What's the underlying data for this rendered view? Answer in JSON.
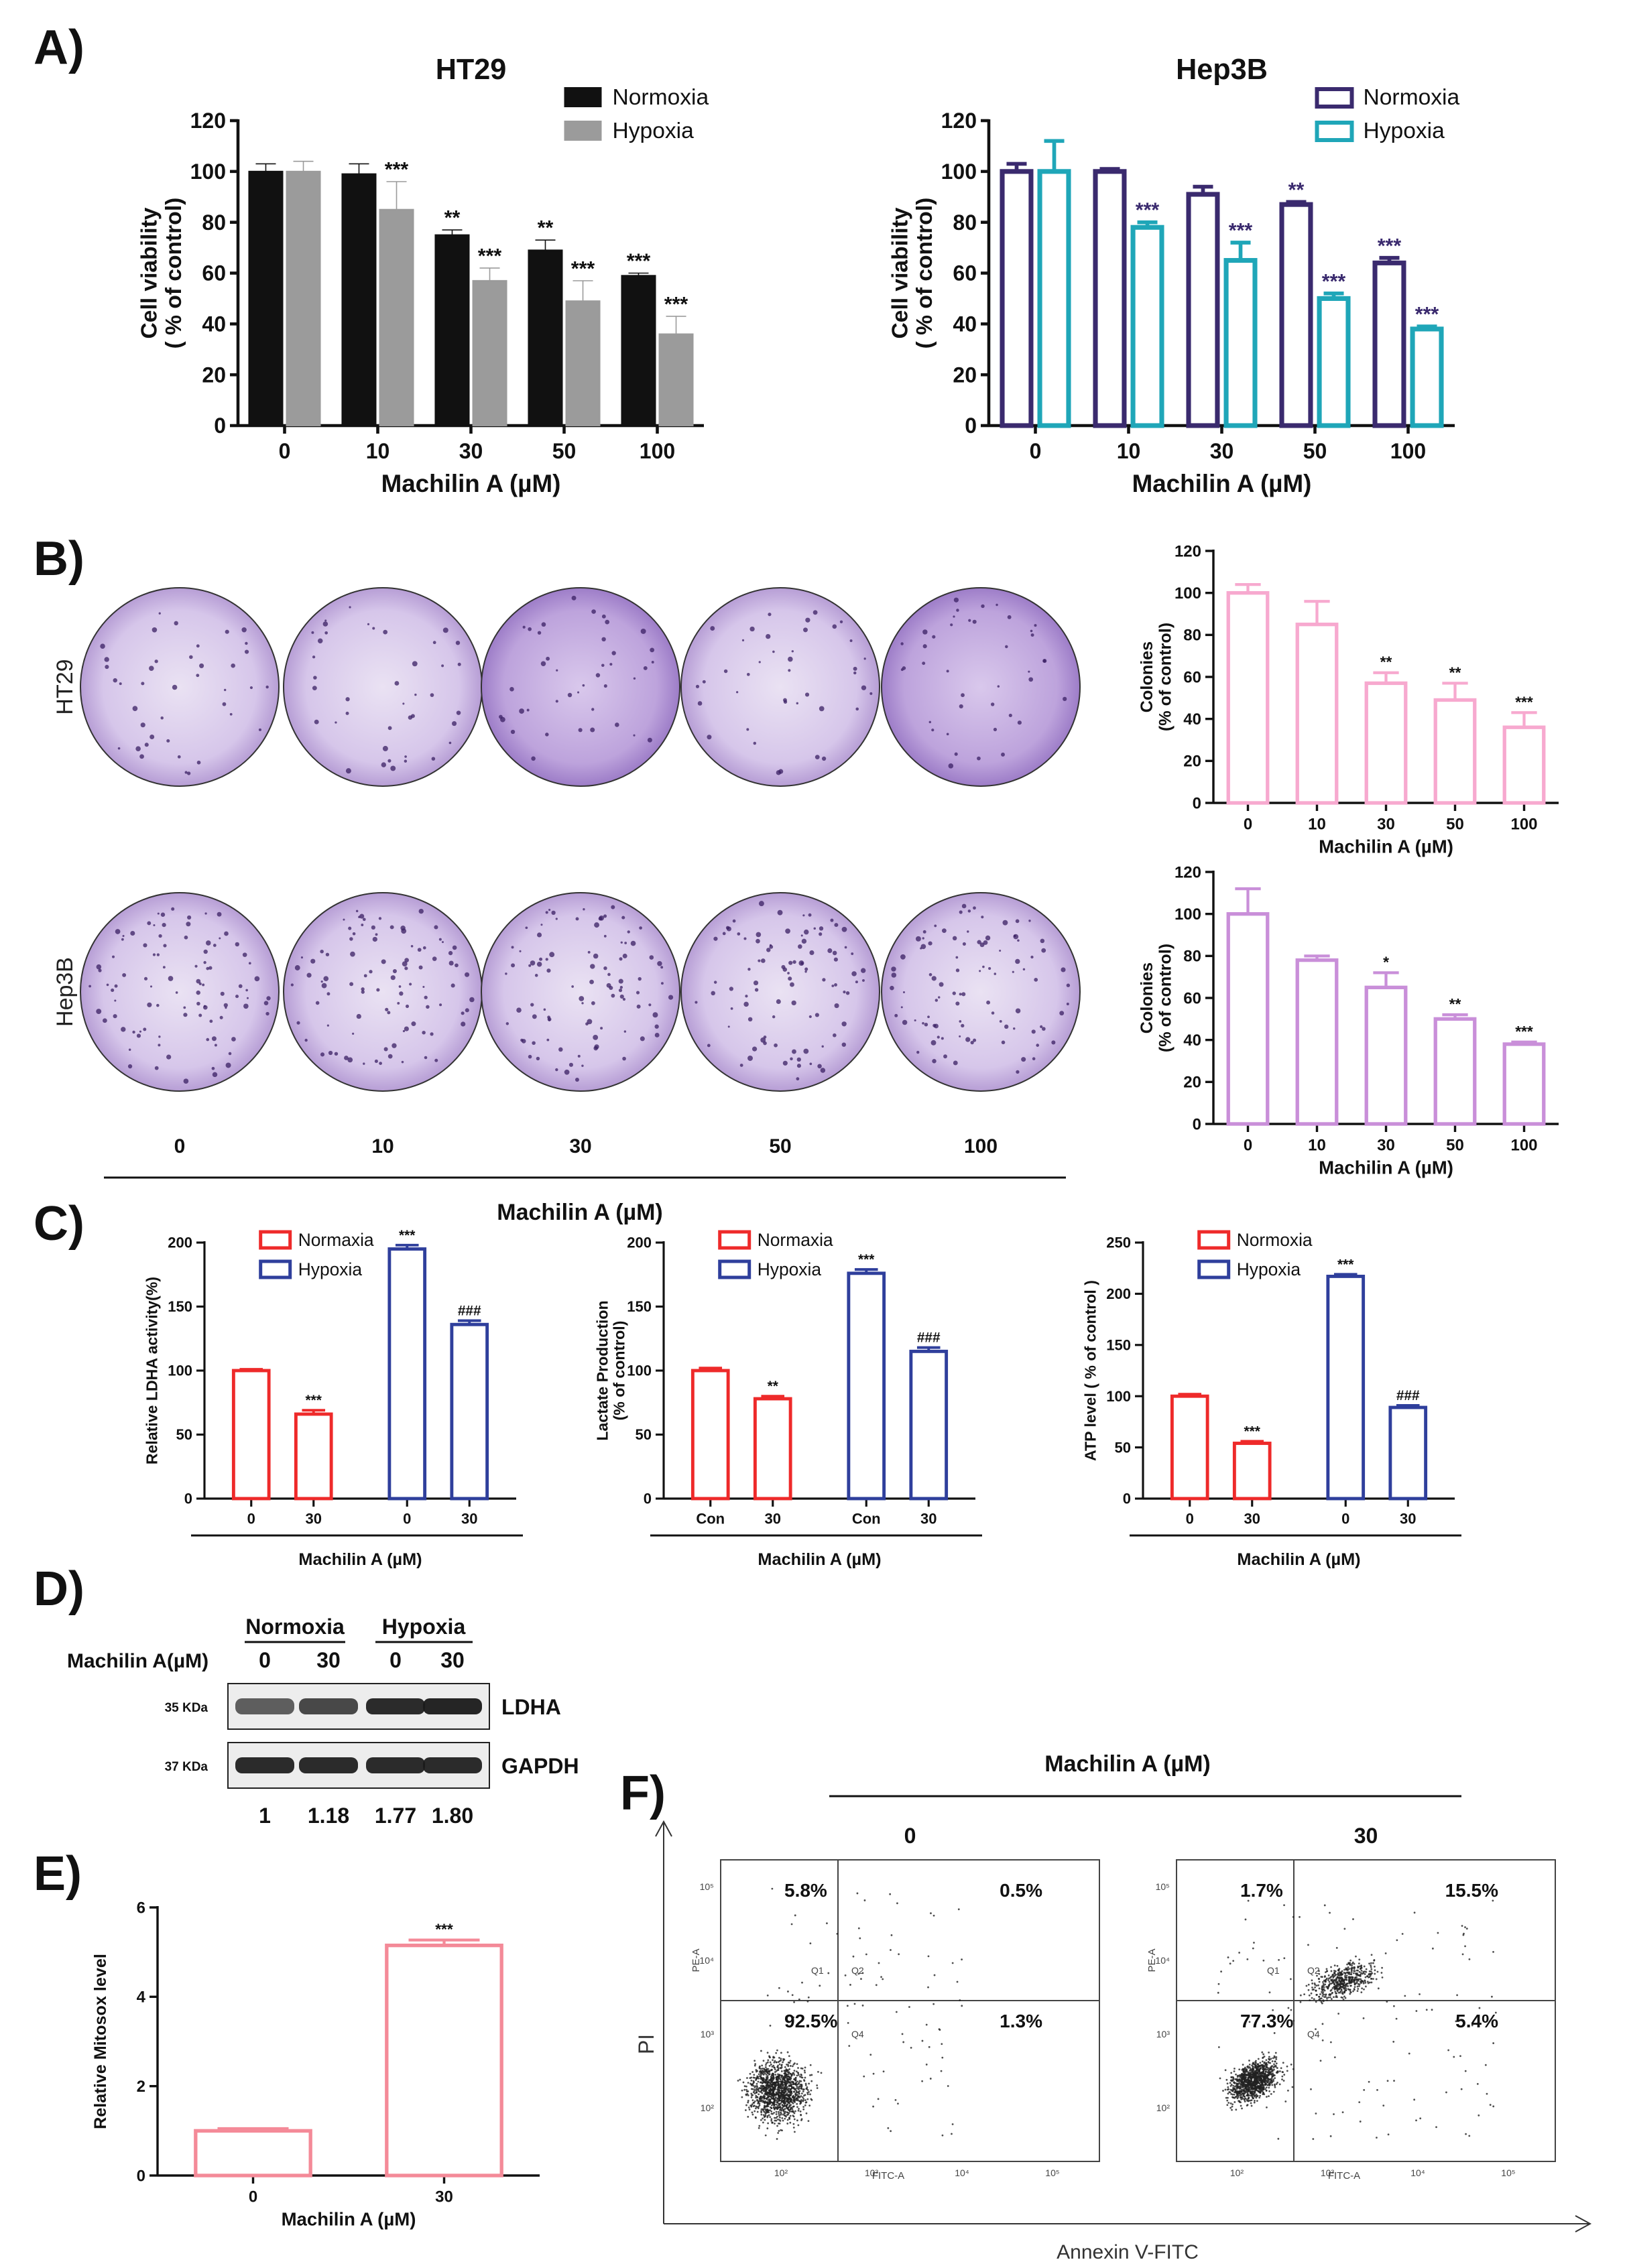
{
  "colors": {
    "black": "#111111",
    "gray": "#9b9b9b",
    "purple_dark": "#3a2a6e",
    "teal": "#1fa6b8",
    "pink": "#f7a9cf",
    "lavender": "#c98fd9",
    "red": "#ee2a2a",
    "blue": "#2f3f9c",
    "mitosox": "#f48a98",
    "dish_light": "#e6dcf0",
    "dish_dark": "#b59ad4"
  },
  "panels": {
    "A": "A)",
    "B": "B)",
    "C": "C)",
    "D": "D)",
    "E": "E)",
    "F": "F)"
  },
  "chart_data": [
    {
      "id": "A_HT29",
      "type": "bar",
      "title": "HT29",
      "xlabel": "Machilin A (µM)",
      "ylabel": [
        "Cell viability",
        "( % of control)"
      ],
      "ylim": [
        0,
        120
      ],
      "yticks": [
        "0",
        "20",
        "40",
        "60",
        "80",
        "100",
        "120"
      ],
      "categories": [
        "0",
        "10",
        "30",
        "50",
        "100"
      ],
      "series": [
        {
          "name": "Normoxia",
          "values": [
            100,
            99,
            75,
            69,
            59
          ],
          "errors": [
            3,
            4,
            2,
            4,
            1
          ],
          "stars": [
            "",
            "",
            "**",
            "**",
            "***"
          ],
          "style": "filled",
          "color": "#111111"
        },
        {
          "name": "Hypoxia",
          "values": [
            100,
            85,
            57,
            49,
            36
          ],
          "errors": [
            4,
            11,
            5,
            8,
            7
          ],
          "stars": [
            "",
            "***",
            "***",
            "***",
            "***"
          ],
          "style": "filled",
          "color": "#9b9b9b"
        }
      ]
    },
    {
      "id": "A_Hep3B",
      "type": "bar",
      "title": "Hep3B",
      "xlabel": "Machilin A (µM)",
      "ylabel": [
        "Cell viability",
        "( % of control)"
      ],
      "ylim": [
        0,
        120
      ],
      "yticks": [
        "0",
        "20",
        "40",
        "60",
        "80",
        "100",
        "120"
      ],
      "categories": [
        "0",
        "10",
        "30",
        "50",
        "100"
      ],
      "series": [
        {
          "name": "Normoxia",
          "values": [
            100,
            100,
            91,
            87,
            64
          ],
          "errors": [
            3,
            1,
            3,
            1,
            2
          ],
          "stars": [
            "",
            "",
            "",
            "**",
            "***"
          ],
          "style": "outline",
          "color": "#3a2a6e"
        },
        {
          "name": "Hypoxia",
          "values": [
            100,
            78,
            65,
            50,
            38
          ],
          "errors": [
            12,
            2,
            7,
            2,
            1
          ],
          "stars": [
            "",
            "***",
            "***",
            "***",
            "***"
          ],
          "style": "outline",
          "color": "#1fa6b8"
        }
      ]
    },
    {
      "id": "B_HT29_colonies",
      "type": "bar",
      "xlabel": "Machilin A (µM)",
      "ylabel": [
        "Colonies",
        "(% of control)"
      ],
      "ylim": [
        0,
        120
      ],
      "yticks": [
        "0",
        "20",
        "40",
        "60",
        "80",
        "100",
        "120"
      ],
      "categories": [
        "0",
        "10",
        "30",
        "50",
        "100"
      ],
      "series": [
        {
          "name": "HT29",
          "values": [
            100,
            85,
            57,
            49,
            36
          ],
          "errors": [
            4,
            11,
            5,
            8,
            7
          ],
          "stars": [
            "",
            "",
            "**",
            "**",
            "***"
          ],
          "style": "outline",
          "color": "#f7a9cf"
        }
      ]
    },
    {
      "id": "B_Hep3B_colonies",
      "type": "bar",
      "xlabel": "Machilin A (µM)",
      "ylabel": [
        "Colonies",
        "(% of control)"
      ],
      "ylim": [
        0,
        120
      ],
      "yticks": [
        "0",
        "20",
        "40",
        "60",
        "80",
        "100",
        "120"
      ],
      "categories": [
        "0",
        "10",
        "30",
        "50",
        "100"
      ],
      "series": [
        {
          "name": "Hep3B",
          "values": [
            100,
            78,
            65,
            50,
            38
          ],
          "errors": [
            12,
            2,
            7,
            2,
            1
          ],
          "stars": [
            "",
            "",
            "*",
            "**",
            "***"
          ],
          "style": "outline",
          "color": "#c98fd9"
        }
      ]
    },
    {
      "id": "C_LDHA",
      "type": "bar",
      "xlabel": "Machilin A (µM)",
      "ylabel": [
        "Relative LDHA activity(%)"
      ],
      "ylim": [
        0,
        200
      ],
      "yticks": [
        "0",
        "50",
        "100",
        "150",
        "200"
      ],
      "categories": [
        "0",
        "30",
        "0",
        "30"
      ],
      "legend": [
        {
          "name": "Normaxia",
          "color": "#ee2a2a"
        },
        {
          "name": "Hypoxia",
          "color": "#2f3f9c"
        }
      ],
      "values": [
        100,
        66,
        195,
        136
      ],
      "errors": [
        1,
        3,
        3,
        3
      ],
      "bar_colors": [
        "#ee2a2a",
        "#ee2a2a",
        "#2f3f9c",
        "#2f3f9c"
      ],
      "stars": [
        "",
        "***",
        "***",
        "###"
      ]
    },
    {
      "id": "C_Lactate",
      "type": "bar",
      "xlabel": "Machilin A (µM)",
      "ylabel": [
        "Lactate Production",
        "(% of  control)"
      ],
      "ylim": [
        0,
        200
      ],
      "yticks": [
        "0",
        "50",
        "100",
        "150",
        "200"
      ],
      "categories": [
        "Con",
        "30",
        "Con",
        "30"
      ],
      "legend": [
        {
          "name": "Normaxia",
          "color": "#ee2a2a"
        },
        {
          "name": "Hypoxia",
          "color": "#2f3f9c"
        }
      ],
      "values": [
        100,
        78,
        176,
        115
      ],
      "errors": [
        2,
        2,
        3,
        3
      ],
      "bar_colors": [
        "#ee2a2a",
        "#ee2a2a",
        "#2f3f9c",
        "#2f3f9c"
      ],
      "stars": [
        "",
        "**",
        "***",
        "###"
      ]
    },
    {
      "id": "C_ATP",
      "type": "bar",
      "xlabel": "Machilin A (µM)",
      "ylabel": [
        "ATP level ( % of control )"
      ],
      "ylim": [
        0,
        250
      ],
      "yticks": [
        "0",
        "50",
        "100",
        "150",
        "200",
        "250"
      ],
      "categories": [
        "0",
        "30",
        "0",
        "30"
      ],
      "legend": [
        {
          "name": "Normoxia",
          "color": "#ee2a2a"
        },
        {
          "name": "Hypoxia",
          "color": "#2f3f9c"
        }
      ],
      "values": [
        100,
        54,
        217,
        89
      ],
      "errors": [
        2,
        2,
        2,
        2
      ],
      "bar_colors": [
        "#ee2a2a",
        "#ee2a2a",
        "#2f3f9c",
        "#2f3f9c"
      ],
      "stars": [
        "",
        "***",
        "***",
        "###"
      ]
    },
    {
      "id": "E_Mitosox",
      "type": "bar",
      "xlabel": "Machilin A (µM)",
      "ylabel": [
        "Relative Mitosox level"
      ],
      "ylim": [
        0,
        6
      ],
      "yticks": [
        "0",
        "2",
        "4",
        "6"
      ],
      "categories": [
        "0",
        "30"
      ],
      "values": [
        1.0,
        5.15
      ],
      "errors": [
        0.05,
        0.12
      ],
      "bar_colors": [
        "#f48a98",
        "#f48a98"
      ],
      "stars": [
        "",
        "***"
      ]
    }
  ],
  "colony_assay": {
    "rows": [
      "HT29",
      "Hep3B"
    ],
    "concentrations": [
      "0",
      "10",
      "30",
      "50",
      "100"
    ],
    "xlabel": "Machilin A (µM)"
  },
  "western": {
    "header_label": "Machilin A(µM)",
    "groups": [
      "Normoxia",
      "Hypoxia"
    ],
    "lanes": [
      "0",
      "30",
      "0",
      "30"
    ],
    "bands": [
      {
        "kda": "35 KDa",
        "name": "LDHA",
        "intensities": [
          0.55,
          0.72,
          0.95,
          1.0
        ]
      },
      {
        "kda": "37 KDa",
        "name": "GAPDH",
        "intensities": [
          0.95,
          0.95,
          0.95,
          0.95
        ]
      }
    ],
    "ratios": [
      "1",
      "1.18",
      "1.77",
      "1.80"
    ]
  },
  "flow": {
    "title": "Machilin A (µM)",
    "xaxis": "Annexin V-FITC",
    "yaxis": "PI",
    "plot_xlabel": "FITC-A",
    "plot_ylabel": "PE-A",
    "quadrant_labels": [
      "Q1",
      "Q2",
      "Q4"
    ],
    "ticks": [
      "10²",
      "10³",
      "10⁴",
      "10⁵"
    ],
    "plots": [
      {
        "conc": "0",
        "q_ul": "5.8%",
        "q_ur": "0.5%",
        "q_ll": "92.5%",
        "q_lr": "1.3%"
      },
      {
        "conc": "30",
        "q_ul": "1.7%",
        "q_ur": "15.5%",
        "q_ll": "77.3%",
        "q_lr": "5.4%"
      }
    ]
  }
}
